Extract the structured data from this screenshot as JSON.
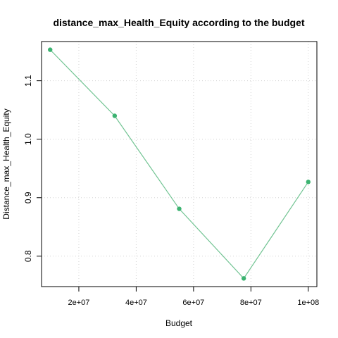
{
  "chart_data": {
    "type": "line",
    "title": "distance_max_Health_Equity according to the budget",
    "xlabel": "Budget",
    "ylabel": "Distance_max_Health_Equity",
    "x": [
      10000000,
      32500000,
      55000000,
      77500000,
      100000000
    ],
    "series": [
      {
        "values": [
          1.153,
          1.04,
          0.881,
          0.762,
          0.927
        ]
      }
    ],
    "xlim": [
      7000000,
      103000000
    ],
    "ylim": [
      0.748,
      1.167
    ],
    "xticks": [
      20000000,
      40000000,
      60000000,
      80000000,
      100000000
    ],
    "xtick_labels": [
      "2e+07",
      "4e+07",
      "6e+07",
      "8e+07",
      "1e+08"
    ],
    "yticks": [
      0.8,
      0.9,
      1.0,
      1.1
    ],
    "ytick_labels": [
      "0.8",
      "0.9",
      "1.0",
      "1.1"
    ],
    "grid": true,
    "line_color": "#72c493",
    "marker_color": "#3cb371"
  }
}
